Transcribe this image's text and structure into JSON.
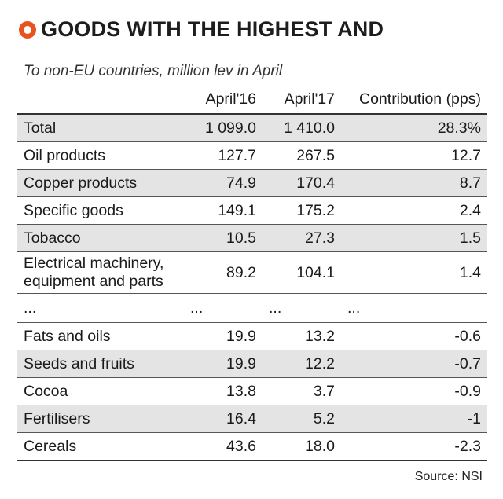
{
  "title": "GOODS WITH THE HIGHEST AND",
  "subtitle": "To non-EU countries, million lev in April",
  "columns": [
    "",
    "April'16",
    "April'17",
    "Contribution (pps)"
  ],
  "rows": [
    {
      "label": "Total",
      "a16": "1 099.0",
      "a17": "1 410.0",
      "contrib": "28.3%"
    },
    {
      "label": "Oil products",
      "a16": "127.7",
      "a17": "267.5",
      "contrib": "12.7"
    },
    {
      "label": "Copper products",
      "a16": "74.9",
      "a17": "170.4",
      "contrib": "8.7"
    },
    {
      "label": "Specific goods",
      "a16": "149.1",
      "a17": "175.2",
      "contrib": "2.4"
    },
    {
      "label": "Tobacco",
      "a16": "10.5",
      "a17": "27.3",
      "contrib": "1.5"
    },
    {
      "label": "Electrical machinery, equipment and parts",
      "a16": "89.2",
      "a17": "104.1",
      "contrib": "1.4"
    },
    {
      "label": "...",
      "a16": "...",
      "a17": "...",
      "contrib": "..."
    },
    {
      "label": "Fats and oils",
      "a16": "19.9",
      "a17": "13.2",
      "contrib": "-0.6"
    },
    {
      "label": "Seeds and fruits",
      "a16": "19.9",
      "a17": "12.2",
      "contrib": "-0.7"
    },
    {
      "label": "Cocoa",
      "a16": "13.8",
      "a17": "3.7",
      "contrib": "-0.9"
    },
    {
      "label": "Fertilisers",
      "a16": "16.4",
      "a17": "5.2",
      "contrib": "-1"
    },
    {
      "label": "Cereals",
      "a16": "43.6",
      "a17": "18.0",
      "contrib": "-2.3"
    }
  ],
  "source": "Source: NSI",
  "colors": {
    "accent": "#e8521f",
    "shade": "#e4e4e4"
  }
}
